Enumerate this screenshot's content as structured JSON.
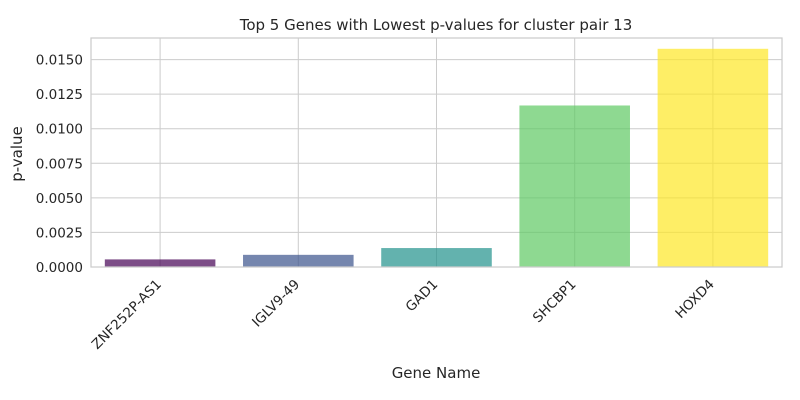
{
  "chart_data": {
    "type": "bar",
    "title": "Top 5 Genes with Lowest p-values for cluster pair 13",
    "xlabel": "Gene Name",
    "ylabel": "p-value",
    "categories": [
      "ZNF252P-AS1",
      "IGLV9-49",
      "GAD1",
      "SHCBP1",
      "HOXD4"
    ],
    "values": [
      0.00055,
      0.00088,
      0.00137,
      0.01168,
      0.01578
    ],
    "colors": [
      "#440154",
      "#3b528b",
      "#21918c",
      "#5ec962",
      "#fde725"
    ],
    "ylim": [
      0,
      0.01656
    ],
    "yticks": [
      "0.0000",
      "0.0025",
      "0.0050",
      "0.0075",
      "0.0100",
      "0.0125",
      "0.0150"
    ],
    "grid": true,
    "legend": "none"
  }
}
